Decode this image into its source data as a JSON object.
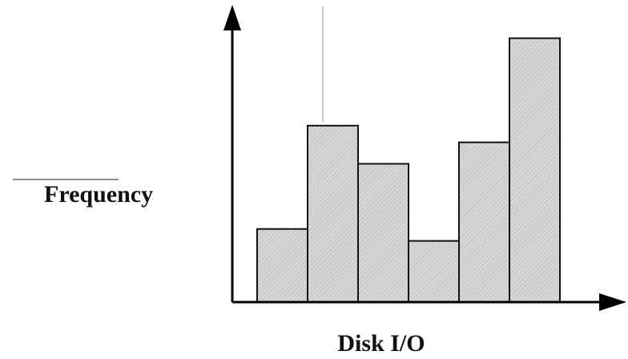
{
  "chart_data": {
    "type": "bar",
    "categories": [
      "",
      "",
      "",
      "",
      "",
      ""
    ],
    "values": [
      92,
      222,
      174,
      77,
      201,
      332
    ],
    "ylim": [
      0,
      370
    ],
    "xlabel": "Disk I/O",
    "ylabel": "Frequency",
    "grid": false,
    "legend": "none"
  },
  "colors": {
    "axis": "#000000",
    "bar_fill": "#d9d9d9",
    "bar_stroke": "#111111"
  }
}
